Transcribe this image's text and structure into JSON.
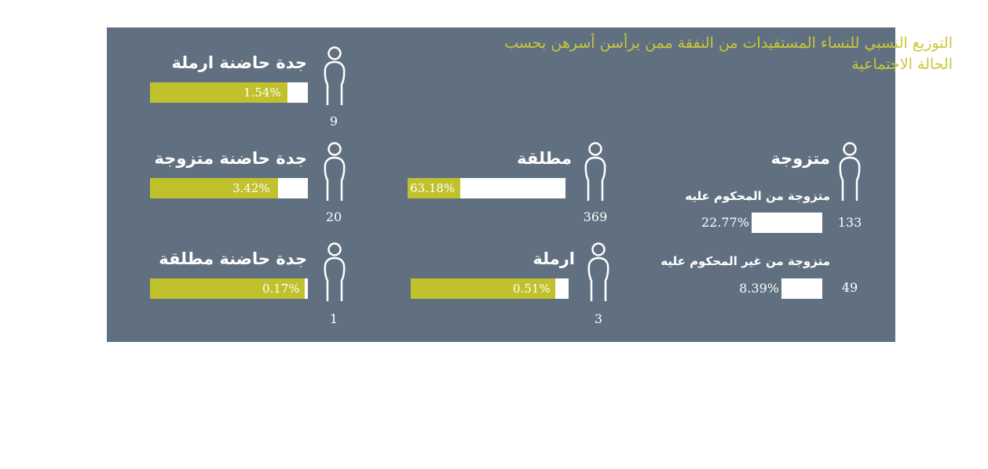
{
  "title": "التوزيع النسبي للنساء المستفيدات من النفقة ممن يرأسن أسرهن بحسب الحالة الاجتماعية",
  "colors": {
    "panel": "#607080",
    "accent": "#c1c12e",
    "title": "#c9c83a",
    "track": "#ffffff"
  },
  "icons": {
    "person": "person-outline-icon"
  },
  "chart_data": {
    "type": "bar",
    "categories": [
      "متزوجة",
      "متزوجة من المحكوم عليه",
      "متزوجة من غير المحكوم عليه",
      "مطلقة",
      "ارملة",
      "جدة حاضنة ارملة",
      "جدة حاضنة متزوجة",
      "جدة حاضنة مطلقة"
    ],
    "series": [
      {
        "values": [
          null,
          22.77,
          8.39,
          63.18,
          0.51,
          1.54,
          3.42,
          0.17
        ]
      }
    ],
    "counts": [
      null,
      133,
      49,
      369,
      3,
      9,
      20,
      1
    ],
    "labels": {
      "married": "متزوجة",
      "married_sub1": "متزوجة من المحكوم عليه",
      "married_sub1_pct": "22.77%",
      "married_sub1_count": "133",
      "married_sub2": "متزوجة من غير المحكوم عليه",
      "married_sub2_pct": "8.39%",
      "married_sub2_count": "49",
      "divorced": "مطلقة",
      "divorced_pct": "63.18%",
      "divorced_count": "369",
      "widow": "ارملة",
      "widow_pct": "0.51%",
      "widow_count": "3",
      "gm_widow": "جدة حاضنة ارملة",
      "gm_widow_pct": "1.54%",
      "gm_widow_count": "9",
      "gm_married": "جدة حاضنة متزوجة",
      "gm_married_pct": "3.42%",
      "gm_married_count": "20",
      "gm_divorced": "جدة حاضنة مطلقة",
      "gm_divorced_pct": "0.17%",
      "gm_divorced_count": "1"
    }
  }
}
